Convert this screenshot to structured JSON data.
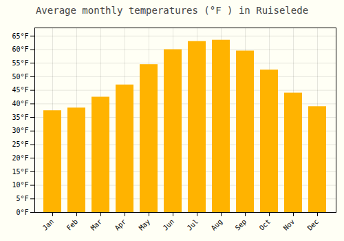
{
  "chart_data": {
    "type": "bar",
    "title": "Average monthly temperatures (°F ) in Ruiselede",
    "categories": [
      "Jan",
      "Feb",
      "Mar",
      "Apr",
      "May",
      "Jun",
      "Jul",
      "Aug",
      "Sep",
      "Oct",
      "Nov",
      "Dec"
    ],
    "values": [
      37.5,
      38.5,
      42.5,
      47.0,
      54.5,
      60.0,
      63.0,
      63.5,
      59.5,
      52.5,
      44.0,
      39.0
    ],
    "color": "#FFB300",
    "ylim": [
      0,
      68
    ],
    "yticks": [
      {
        "value": 0,
        "label": "0°F"
      },
      {
        "value": 5,
        "label": "5°F"
      },
      {
        "value": 10,
        "label": "10°F"
      },
      {
        "value": 15,
        "label": "15°F"
      },
      {
        "value": 20,
        "label": "20°F"
      },
      {
        "value": 25,
        "label": "25°F"
      },
      {
        "value": 30,
        "label": "30°F"
      },
      {
        "value": 35,
        "label": "35°F"
      },
      {
        "value": 40,
        "label": "40°F"
      },
      {
        "value": 45,
        "label": "45°F"
      },
      {
        "value": 50,
        "label": "50°F"
      },
      {
        "value": 55,
        "label": "55°F"
      },
      {
        "value": 60,
        "label": "60°F"
      },
      {
        "value": 65,
        "label": "65°F"
      }
    ],
    "grid": true
  }
}
